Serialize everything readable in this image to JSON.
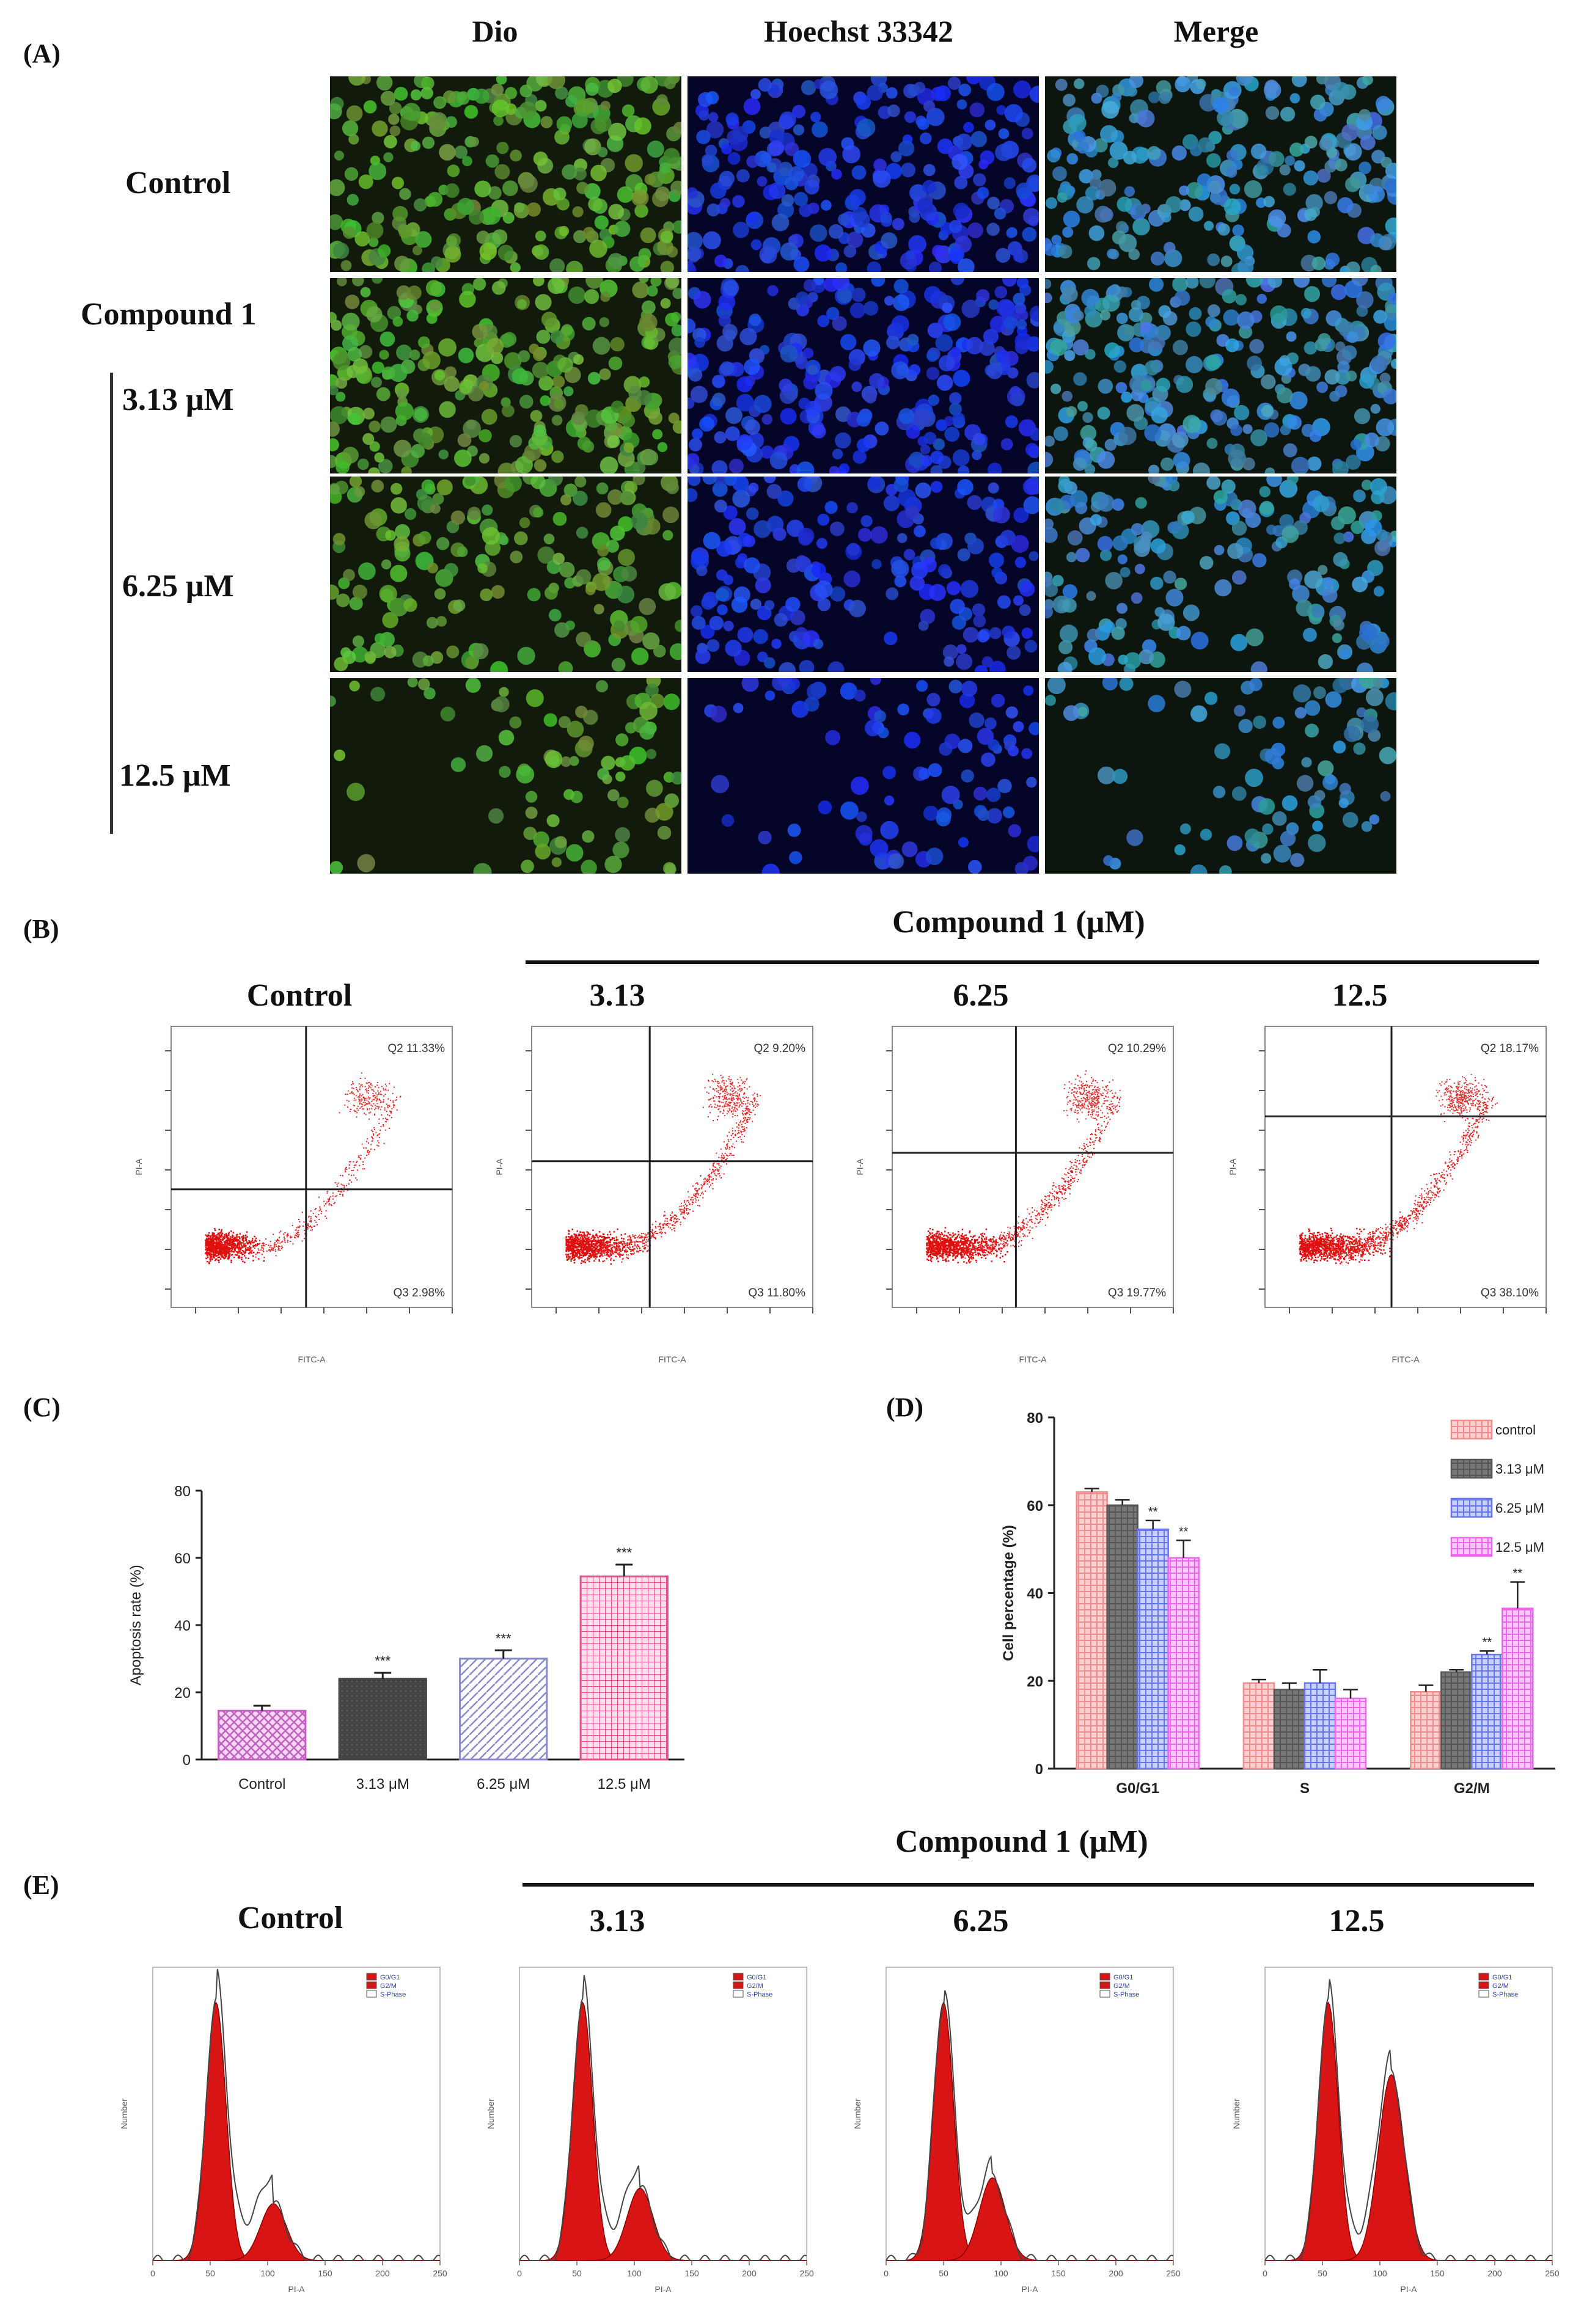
{
  "panelA": {
    "label": "(A)",
    "columns": [
      "Dio",
      "Hoechst 33342",
      "Merge"
    ],
    "rows": {
      "control": "Control",
      "compound": "Compound 1",
      "c1": "3.13 μM",
      "c2": "6.25 μM",
      "c3": "12.5 μM"
    }
  },
  "panelB": {
    "label": "(B)",
    "compound_header": "Compound 1 (μM)",
    "plot_titles": [
      "Control",
      "3.13",
      "6.25",
      "12.5"
    ],
    "q2": [
      "Q2 11.33%",
      "Q2 9.20%",
      "Q2 10.29%",
      "Q2 18.17%"
    ],
    "q3": [
      "Q3 2.98%",
      "Q3 11.80%",
      "Q3 19.77%",
      "Q3 38.10%"
    ],
    "xlabel": "FITC-A",
    "ylabel": "PI-A"
  },
  "panelC": {
    "label": "(C)"
  },
  "panelD": {
    "label": "(D)"
  },
  "panelE": {
    "label": "(E)",
    "compound_header": "Compound 1 (μM)",
    "plot_titles": [
      "Control",
      "3.13",
      "6.25",
      "12.5"
    ],
    "legend": [
      "G0/G1",
      "G2/M",
      "S-Phase"
    ],
    "xlabel": "PI-A",
    "ylabel": "Number",
    "x_ticks": [
      "0",
      "50",
      "100",
      "150",
      "200",
      "250"
    ]
  },
  "chart_data": [
    {
      "type": "bar",
      "categories": [
        "Control",
        "3.13 μM",
        "6.25 μM",
        "12.5 μM"
      ],
      "values": [
        14.5,
        24,
        30,
        54.5
      ],
      "errors": [
        1.5,
        1.8,
        2.5,
        3.5
      ],
      "significance": [
        "",
        "***",
        "***",
        "***"
      ],
      "ylabel": "Apoptosis rate (%)",
      "ylim": [
        0,
        80
      ],
      "y_ticks": [
        "0",
        "20",
        "40",
        "60",
        "80"
      ],
      "colors": [
        "#c060c0",
        "#444444",
        "#8888cc",
        "#e0508a"
      ]
    },
    {
      "type": "bar",
      "categories": [
        "G0/G1",
        "S",
        "G2/M"
      ],
      "ylabel": "Cell percentage (%)",
      "ylim": [
        0,
        80
      ],
      "y_ticks": [
        "0",
        "20",
        "40",
        "60",
        "80"
      ],
      "legend_position": "top-right",
      "series": [
        {
          "name": "control",
          "values": [
            63,
            19.5,
            17.5
          ],
          "errors": [
            0.8,
            0.8,
            1.5
          ],
          "sig": [
            "",
            "",
            ""
          ],
          "color": "#f28b8b"
        },
        {
          "name": "3.13 μM",
          "values": [
            60,
            18,
            22
          ],
          "errors": [
            1.2,
            1.5,
            0.5
          ],
          "sig": [
            "",
            "",
            ""
          ],
          "color": "#555555"
        },
        {
          "name": "6.25 μM",
          "values": [
            54.5,
            19.5,
            26
          ],
          "errors": [
            2.0,
            3.0,
            0.8
          ],
          "sig": [
            "**",
            "",
            "**"
          ],
          "color": "#6677ee"
        },
        {
          "name": "12.5 μM",
          "values": [
            48,
            16,
            36.5
          ],
          "errors": [
            4.0,
            2.0,
            6.0
          ],
          "sig": [
            "**",
            "",
            "**"
          ],
          "color": "#ee66ee"
        }
      ]
    }
  ]
}
